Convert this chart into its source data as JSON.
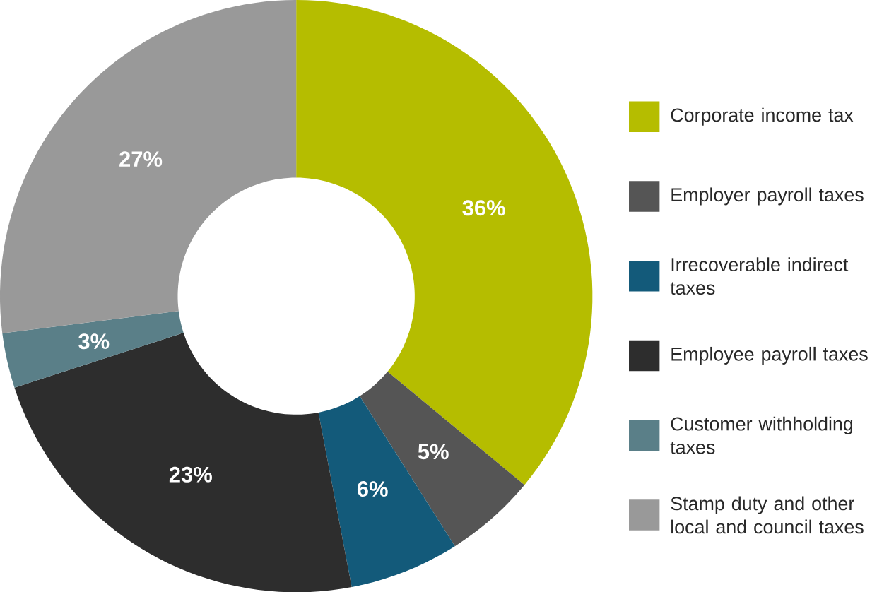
{
  "chart_data": {
    "type": "donut",
    "categories": [
      "Corporate income tax",
      "Employer payroll taxes",
      "Irrecoverable indirect taxes",
      "Employee payroll taxes",
      "Customer withholding taxes",
      "Stamp duty and other local and council taxes"
    ],
    "values": [
      36,
      5,
      6,
      23,
      3,
      27
    ],
    "colors": [
      "#b5bd00",
      "#555555",
      "#135a7a",
      "#2d2d2d",
      "#5a7f88",
      "#999999"
    ],
    "value_labels": [
      "36%",
      "5%",
      "6%",
      "23%",
      "3%",
      "27%"
    ],
    "legend": "right"
  }
}
